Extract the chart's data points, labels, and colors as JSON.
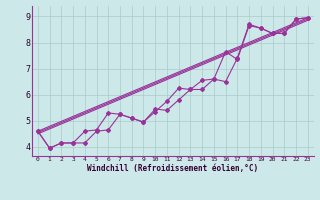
{
  "xlabel": "Windchill (Refroidissement éolien,°C)",
  "background_color": "#cce8e8",
  "line_color": "#993399",
  "xlim": [
    -0.5,
    23.5
  ],
  "ylim": [
    3.65,
    9.4
  ],
  "xticks": [
    0,
    1,
    2,
    3,
    4,
    5,
    6,
    7,
    8,
    9,
    10,
    11,
    12,
    13,
    14,
    15,
    16,
    17,
    18,
    19,
    20,
    21,
    22,
    23
  ],
  "yticks": [
    4,
    5,
    6,
    7,
    8,
    9
  ],
  "series_data": [
    [
      4.6,
      3.95,
      4.15,
      4.15,
      4.15,
      4.6,
      4.65,
      5.25,
      5.1,
      4.95,
      5.45,
      5.4,
      5.8,
      6.2,
      6.2,
      6.6,
      6.5,
      7.4,
      8.7,
      8.55,
      8.35,
      8.35,
      8.9,
      8.95
    ],
    [
      4.6,
      3.95,
      4.15,
      4.15,
      4.6,
      4.65,
      5.3,
      5.25,
      5.1,
      4.95,
      5.35,
      5.75,
      6.25,
      6.2,
      6.55,
      6.6,
      7.65,
      7.35,
      8.65,
      8.55,
      8.35,
      8.35,
      8.9,
      8.95
    ]
  ],
  "trend_lines": [
    {
      "x_start": 0,
      "y_start": 4.6,
      "x_end": 23,
      "y_end": 8.95
    },
    {
      "x_start": 0,
      "y_start": 4.55,
      "x_end": 23,
      "y_end": 8.9
    },
    {
      "x_start": 0,
      "y_start": 4.5,
      "x_end": 23,
      "y_end": 8.85
    }
  ],
  "xlabel_fontsize": 5.5,
  "tick_fontsize_x": 4.5,
  "tick_fontsize_y": 6.0,
  "grid_color": "#aacccc",
  "spine_color": "#993399"
}
